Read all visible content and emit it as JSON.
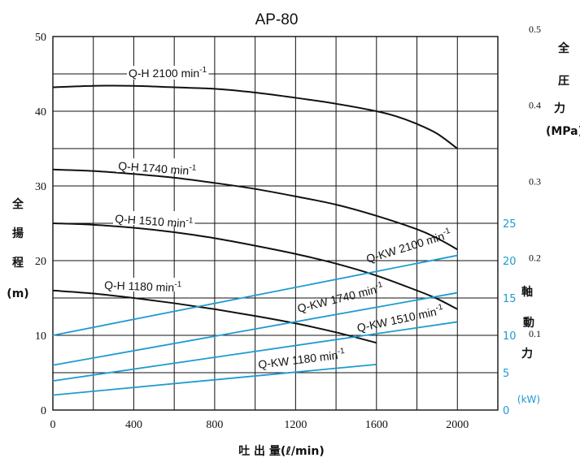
{
  "chart_data": {
    "type": "line",
    "title": "AP-80",
    "xlabel": "吐 出 量(ℓ/min)",
    "xlim": [
      0,
      2200
    ],
    "x_ticks": [
      "0",
      "400",
      "800",
      "1200",
      "1600",
      "2000"
    ],
    "left_axis": {
      "label_chars": [
        "全",
        "揚",
        "程",
        "(m)"
      ],
      "ylim": [
        0,
        50
      ],
      "ticks": [
        "0",
        "10",
        "20",
        "30",
        "40",
        "50"
      ]
    },
    "right_axis_pressure": {
      "label_chars": [
        "全",
        "圧",
        "力",
        "(MPa)"
      ],
      "ticks": [
        "0.1",
        "0.2",
        "0.3",
        "0.4",
        "0.5"
      ]
    },
    "right_axis_power": {
      "label_chars": [
        "軸",
        "動",
        "力",
        "(kW)"
      ],
      "ticks": [
        "0",
        "5",
        "10",
        "15",
        "20",
        "25"
      ]
    },
    "grid": true,
    "series": [
      {
        "name": "Q-H 2100 min",
        "sup": "-1",
        "kind": "head",
        "x": [
          0,
          200,
          400,
          600,
          800,
          1000,
          1200,
          1400,
          1600,
          1700,
          1800,
          1900,
          2000
        ],
        "y": [
          43.2,
          43.4,
          43.4,
          43.2,
          43.0,
          42.5,
          41.8,
          41.0,
          40.0,
          39.3,
          38.3,
          37.0,
          35.0
        ]
      },
      {
        "name": "Q-H 1740 min",
        "sup": "-1",
        "kind": "head",
        "x": [
          0,
          200,
          400,
          600,
          800,
          1000,
          1200,
          1400,
          1600,
          1800,
          1900,
          2000
        ],
        "y": [
          32.2,
          32.0,
          31.6,
          31.1,
          30.4,
          29.6,
          28.6,
          27.5,
          26.0,
          24.2,
          23.0,
          21.5
        ]
      },
      {
        "name": "Q-H 1510 min",
        "sup": "-1",
        "kind": "head",
        "x": [
          0,
          200,
          400,
          600,
          800,
          1000,
          1200,
          1400,
          1600,
          1800,
          1900,
          2000
        ],
        "y": [
          25.0,
          24.8,
          24.4,
          23.8,
          23.0,
          22.0,
          20.9,
          19.6,
          18.0,
          16.0,
          14.9,
          13.5
        ]
      },
      {
        "name": "Q-H 1180 min",
        "sup": "-1",
        "kind": "head",
        "x": [
          0,
          200,
          400,
          600,
          800,
          1000,
          1200,
          1400,
          1600
        ],
        "y": [
          16.0,
          15.6,
          15.0,
          14.3,
          13.5,
          12.6,
          11.6,
          10.4,
          9.0
        ]
      },
      {
        "name": "Q-KW 2100 min",
        "sup": "-1",
        "kind": "power",
        "x": [
          0,
          2000
        ],
        "y": [
          10.0,
          20.7
        ]
      },
      {
        "name": "Q-KW 1740 min",
        "sup": "-1",
        "kind": "power",
        "x": [
          0,
          2000
        ],
        "y": [
          6.0,
          15.7
        ]
      },
      {
        "name": "Q-KW 1510 min",
        "sup": "-1",
        "kind": "power",
        "x": [
          0,
          2000
        ],
        "y": [
          3.9,
          11.8
        ]
      },
      {
        "name": "Q-KW 1180 min",
        "sup": "-1",
        "kind": "power",
        "x": [
          0,
          1600
        ],
        "y": [
          2.0,
          6.1
        ]
      }
    ],
    "colors": {
      "head": "#111111",
      "power": "#1e9bd0",
      "grid": "#111111"
    }
  }
}
